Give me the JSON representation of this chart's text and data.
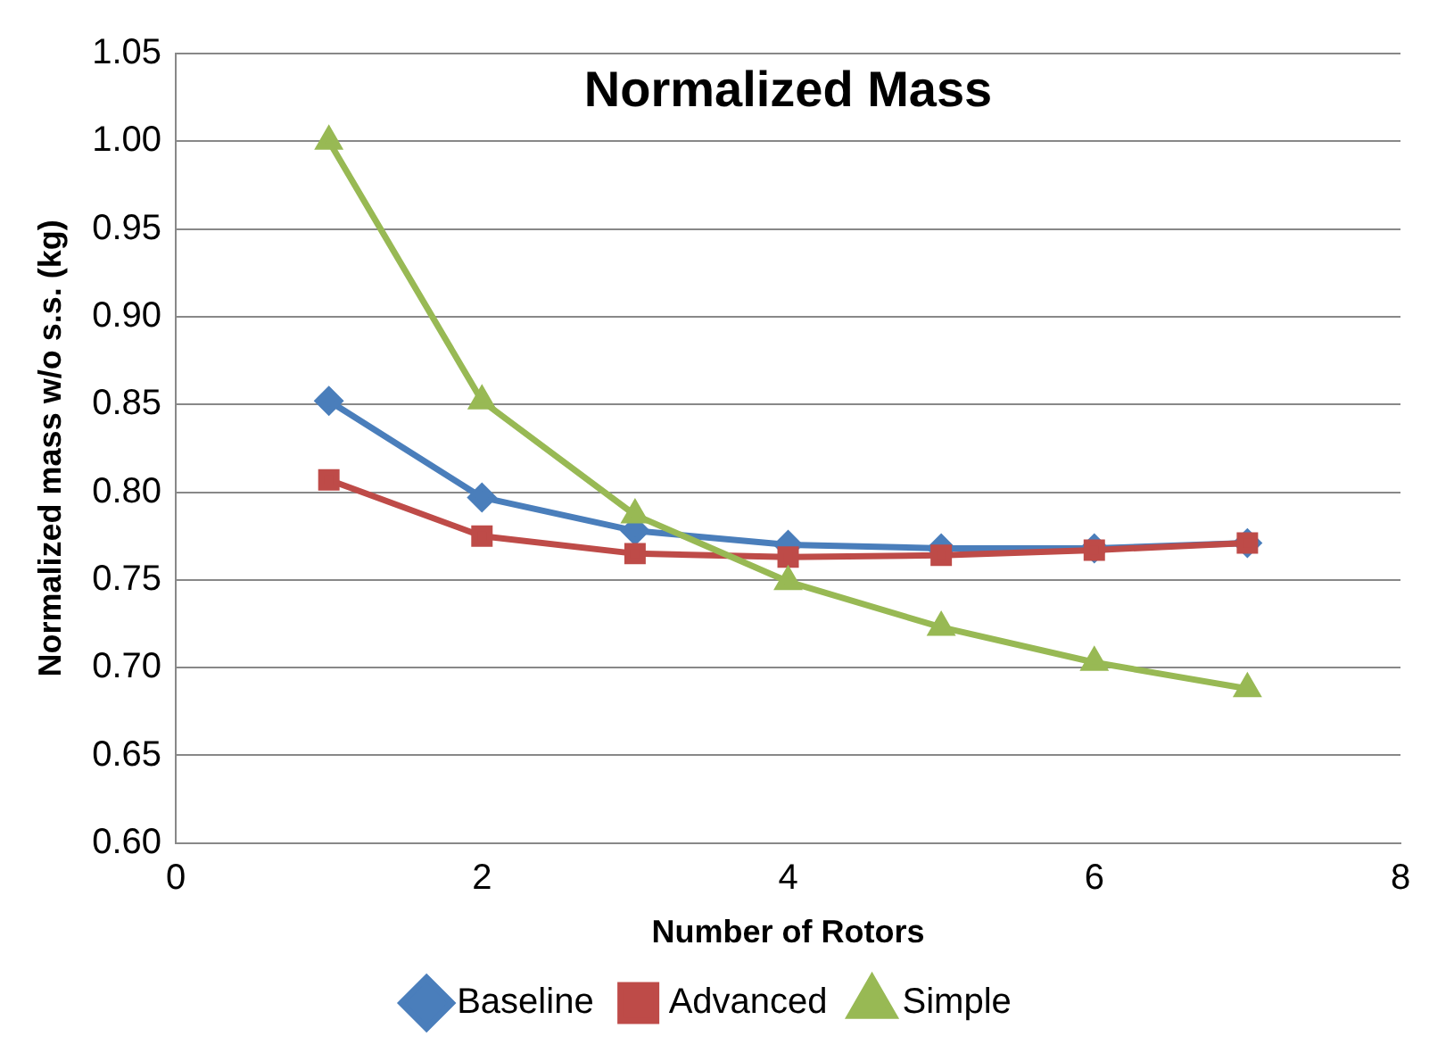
{
  "chart_data": {
    "type": "line",
    "title": "Normalized Mass",
    "xlabel": "Number of Rotors",
    "ylabel": "Normalized mass w/o s.s. (kg)",
    "x": [
      1,
      2,
      3,
      4,
      5,
      6,
      7
    ],
    "series": [
      {
        "name": "Baseline",
        "color": "#4a7ebb",
        "marker": "diamond",
        "values": [
          0.852,
          0.797,
          0.778,
          0.77,
          0.768,
          0.768,
          0.771
        ]
      },
      {
        "name": "Advanced",
        "color": "#be4b48",
        "marker": "square",
        "values": [
          0.807,
          0.775,
          0.765,
          0.763,
          0.764,
          0.767,
          0.771
        ]
      },
      {
        "name": "Simple",
        "color": "#98b954",
        "marker": "triangle",
        "values": [
          1.0,
          0.852,
          0.787,
          0.749,
          0.723,
          0.703,
          0.688
        ]
      }
    ],
    "xlim": [
      0,
      8
    ],
    "xticks": [
      0,
      2,
      4,
      6,
      8
    ],
    "ylim": [
      0.6,
      1.05
    ],
    "yticks": [
      {
        "value": 0.6,
        "label": "0.60"
      },
      {
        "value": 0.65,
        "label": "0.65"
      },
      {
        "value": 0.7,
        "label": "0.70"
      },
      {
        "value": 0.75,
        "label": "0.75"
      },
      {
        "value": 0.8,
        "label": "0.80"
      },
      {
        "value": 0.85,
        "label": "0.85"
      },
      {
        "value": 0.9,
        "label": "0.90"
      },
      {
        "value": 0.95,
        "label": "0.95"
      },
      {
        "value": 1.0,
        "label": "1.00"
      },
      {
        "value": 1.05,
        "label": "1.05"
      }
    ],
    "grid": "y",
    "legend": "bottom"
  }
}
